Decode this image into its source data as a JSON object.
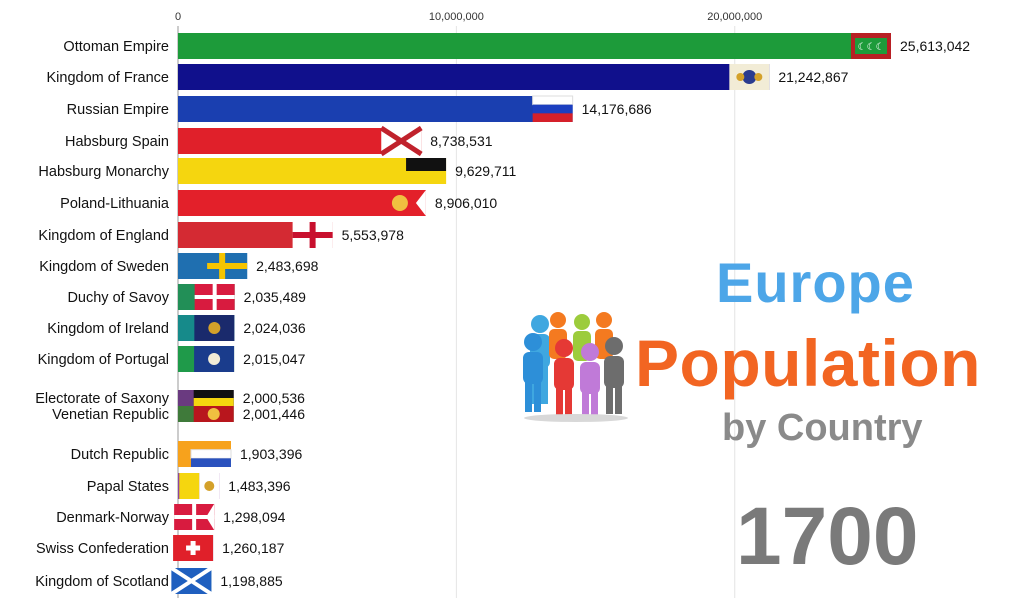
{
  "chart_data": {
    "type": "bar",
    "orientation": "horizontal",
    "xlim": [
      0,
      25613042
    ],
    "x_ticks": [
      0,
      10000000,
      20000000
    ],
    "x_tick_labels": [
      "0",
      "10,000,000",
      "20,000,000"
    ],
    "grid": true,
    "categories": [
      "Ottoman Empire",
      "Kingdom of France",
      "Russian Empire",
      "Habsburg Spain",
      "Habsburg Monarchy",
      "Poland-Lithuania",
      "Kingdom of England",
      "Kingdom of Sweden",
      "Duchy of Savoy",
      "Kingdom of Ireland",
      "Kingdom of Portugal",
      "Electorate of Saxony",
      "Venetian Republic",
      "Dutch Republic",
      "Papal States",
      "Denmark-Norway",
      "Swiss Confederation",
      "Kingdom of Scotland"
    ],
    "values": [
      25613042,
      21242867,
      14176686,
      8738531,
      9629711,
      8906010,
      5553978,
      2483698,
      2035489,
      2024036,
      2015047,
      2000536,
      2001446,
      1903396,
      1483396,
      1298094,
      1260187,
      1198885
    ],
    "value_labels": [
      "25,613,042",
      "21,242,867",
      "14,176,686",
      "8,738,531",
      "9,629,711",
      "8,906,010",
      "5,553,978",
      "2,483,698",
      "2,035,489",
      "2,024,036",
      "2,015,047",
      "2,000,536",
      "2,001,446",
      "1,903,396",
      "1,483,396",
      "1,298,094",
      "1,260,187",
      "1,198,885"
    ],
    "bar_colors": [
      "#1d9b3a",
      "#10108c",
      "#1a3fb0",
      "#e0202a",
      "#f5d60f",
      "#e3202a",
      "#d42a33",
      "#1f6fb0",
      "#228f57",
      "#168a8a",
      "#1f9a4a",
      "#6a3a80",
      "#3f7a3a",
      "#f7a21c",
      "#8e44a4",
      "#d81b3f",
      "#3a62c4",
      "#1a7f9a"
    ],
    "flags": [
      "ottoman",
      "france",
      "russia",
      "spain-cross",
      "habsburg",
      "poland",
      "england",
      "sweden",
      "savoy",
      "ireland",
      "portugal",
      "saxony",
      "venice",
      "dutch",
      "papal",
      "denmark",
      "swiss",
      "scotland"
    ]
  },
  "title": {
    "line1": "Europe",
    "line2": "Population",
    "line3": "by Country"
  },
  "year": "1700",
  "colors": {
    "title_blue": "#4da6e8",
    "title_orange": "#f26522",
    "title_gray": "#8a8a8a"
  },
  "decorations": {
    "people_icon": "people-group-icon"
  }
}
